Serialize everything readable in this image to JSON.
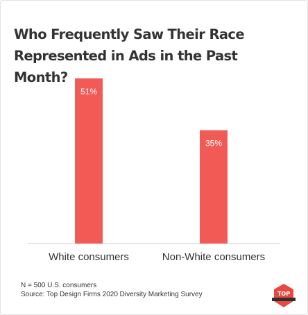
{
  "chart_data": {
    "type": "bar",
    "title": "Who Frequently Saw Their Race Represented in Ads in the Past Month?",
    "categories": [
      "White consumers",
      "Non-White consumers"
    ],
    "values": [
      51,
      35
    ],
    "value_labels": [
      "51%",
      "35%"
    ],
    "ylim": [
      0,
      60
    ],
    "grid": false,
    "bar_color": "#f25a55"
  },
  "footnotes": {
    "sample": "N = 500 U.S. consumers",
    "source": "Source: Top Design Firms 2020 Diversity Marketing Survey"
  },
  "logo": {
    "icon": "top-design-firms-badge-icon",
    "text": "TOP",
    "color": "#e8483f"
  }
}
